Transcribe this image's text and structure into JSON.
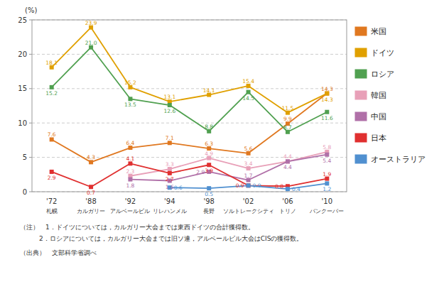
{
  "chart_data": {
    "type": "line",
    "ylabel": "(%)",
    "categories": [
      "'72\n札幌",
      "'88\nカルガリー",
      "'92\nアルベールビル",
      "'94\nリレハンメル",
      "'98\n長野",
      "'02\nソルトレークシティ",
      "'06\nトリノ",
      "'10\nバンクーバー"
    ],
    "series": [
      {
        "name": "米国",
        "color": "#e07820",
        "values": [
          7.6,
          4.3,
          6.4,
          7.1,
          6.3,
          5.6,
          9.9,
          14.3
        ]
      },
      {
        "name": "ドイツ",
        "color": "#e0a000",
        "values": [
          18.1,
          23.9,
          15.2,
          13.1,
          14.1,
          15.4,
          11.5,
          14.3
        ]
      },
      {
        "name": "ロシア",
        "color": "#50a050",
        "values": [
          15.2,
          21.0,
          13.5,
          12.6,
          8.8,
          14.5,
          8.7,
          11.6
        ],
        "value_labels": [
          "15.2",
          "21.0",
          "13.5",
          "12.6",
          "8.8",
          "14.5",
          "8.7",
          "11.6"
        ]
      },
      {
        "name": "韓国",
        "color": "#e8a0b8",
        "values": [
          null,
          null,
          2.3,
          3.3,
          4.9,
          3.4,
          4.4,
          5.8
        ]
      },
      {
        "name": "中国",
        "color": "#b070a8",
        "values": [
          null,
          null,
          1.8,
          1.6,
          2.9,
          1.7,
          4.4,
          5.4
        ]
      },
      {
        "name": "日本",
        "color": "#e03030",
        "values": [
          2.9,
          0.7,
          4.1,
          2.7,
          3.9,
          0.9,
          0.8,
          1.9
        ]
      },
      {
        "name": "オーストラリア",
        "color": "#5090d0",
        "values": [
          null,
          null,
          null,
          0.6,
          0.5,
          0.9,
          0.4,
          1.2
        ]
      }
    ],
    "ylim": [
      0,
      25
    ],
    "yticks": [
      0,
      5,
      10,
      15,
      20,
      25
    ],
    "grid": true,
    "legend": "right",
    "marker": "square",
    "data_labels": true,
    "annotations": [
      "（注）　1．ドイツについては，カルガリー大会までは東西ドイツの合計獲得数。",
      "　　　2．ロシアについては，カルガリー大会までは旧ソ連，アルベールビル大会はCISの獲得数。",
      "（出典）　文部科学省調べ"
    ]
  }
}
